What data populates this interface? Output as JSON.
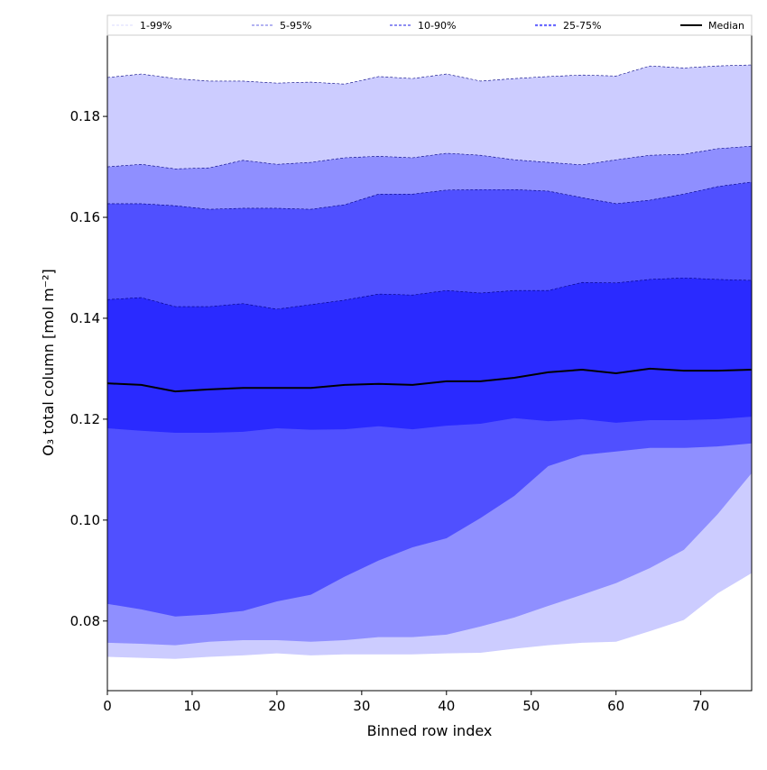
{
  "chart_data": {
    "type": "area",
    "xlabel": "Binned row index",
    "ylabel": "O₃ total column [mol m⁻²]",
    "xlim": [
      0,
      76
    ],
    "ylim": [
      0.0662,
      0.1961
    ],
    "xticks": [
      0,
      10,
      20,
      30,
      40,
      50,
      60,
      70
    ],
    "yticks": [
      0.08,
      0.1,
      0.12,
      0.14,
      0.16,
      0.18
    ],
    "ytick_labels": [
      "0.08",
      "0.10",
      "0.12",
      "0.14",
      "0.16",
      "0.18"
    ],
    "grid": false,
    "legend_position": "top (above plot, horizontal)",
    "x": [
      0,
      4,
      8,
      12,
      16,
      20,
      24,
      28,
      32,
      36,
      40,
      44,
      48,
      52,
      56,
      60,
      64,
      68,
      72,
      76
    ],
    "bands": [
      {
        "name": "1-99%",
        "color": "#ccccff",
        "line_color": "#d8d8ff",
        "lower": [
          0.0729,
          0.0727,
          0.0725,
          0.0729,
          0.0732,
          0.0736,
          0.0732,
          0.0734,
          0.0734,
          0.0734,
          0.0736,
          0.0737,
          0.0745,
          0.0752,
          0.0757,
          0.0759,
          0.078,
          0.0802,
          0.0855,
          0.0895
        ],
        "upper": [
          0.1877,
          0.1884,
          0.1875,
          0.187,
          0.187,
          0.1866,
          0.1868,
          0.1864,
          0.1879,
          0.1875,
          0.1884,
          0.187,
          0.1875,
          0.1879,
          0.1882,
          0.188,
          0.19,
          0.1896,
          0.19,
          0.1902
        ]
      },
      {
        "name": "5-95%",
        "color": "#8f8fff",
        "line_color": "#9a9aee",
        "lower": [
          0.0757,
          0.0755,
          0.0752,
          0.0759,
          0.0762,
          0.0762,
          0.0759,
          0.0762,
          0.0768,
          0.0768,
          0.0773,
          0.0789,
          0.0807,
          0.083,
          0.0852,
          0.0875,
          0.0905,
          0.0941,
          0.1012,
          0.1093
        ],
        "upper": [
          0.17,
          0.1705,
          0.1696,
          0.1698,
          0.1713,
          0.1705,
          0.1709,
          0.1718,
          0.1721,
          0.1718,
          0.1727,
          0.1723,
          0.1714,
          0.1709,
          0.1704,
          0.1714,
          0.1723,
          0.1725,
          0.1736,
          0.1741
        ]
      },
      {
        "name": "10-90%",
        "color": "#5050ff",
        "line_color": "#7f7ff0",
        "lower": [
          0.0834,
          0.0823,
          0.0809,
          0.0813,
          0.082,
          0.0839,
          0.0852,
          0.0888,
          0.092,
          0.0946,
          0.0964,
          0.1004,
          0.1048,
          0.1107,
          0.1129,
          0.1136,
          0.1143,
          0.1143,
          0.1146,
          0.1152
        ],
        "upper": [
          0.1627,
          0.1627,
          0.1623,
          0.1616,
          0.1618,
          0.1618,
          0.1616,
          0.1625,
          0.1646,
          0.1646,
          0.1654,
          0.1655,
          0.1655,
          0.1652,
          0.1639,
          0.1627,
          0.1634,
          0.1646,
          0.1661,
          0.167
        ]
      },
      {
        "name": "25-75%",
        "color": "#2a2aff",
        "line_color": "#6a6aff",
        "lower": [
          0.1182,
          0.1177,
          0.1173,
          0.1173,
          0.1175,
          0.1182,
          0.1179,
          0.118,
          0.1186,
          0.118,
          0.1187,
          0.1191,
          0.1202,
          0.1196,
          0.12,
          0.1193,
          0.1198,
          0.1198,
          0.12,
          0.1205
        ],
        "upper": [
          0.1437,
          0.1441,
          0.1423,
          0.1423,
          0.1429,
          0.1418,
          0.1427,
          0.1436,
          0.1448,
          0.1446,
          0.1455,
          0.145,
          0.1455,
          0.1455,
          0.1471,
          0.147,
          0.1477,
          0.148,
          0.1477,
          0.1475
        ]
      }
    ],
    "median": {
      "name": "Median",
      "color": "#000000",
      "values": [
        0.1271,
        0.1268,
        0.1255,
        0.1259,
        0.1262,
        0.1262,
        0.1262,
        0.1268,
        0.127,
        0.1268,
        0.1275,
        0.1275,
        0.1282,
        0.1293,
        0.1298,
        0.1291,
        0.13,
        0.1296,
        0.1296,
        0.1298
      ]
    }
  }
}
